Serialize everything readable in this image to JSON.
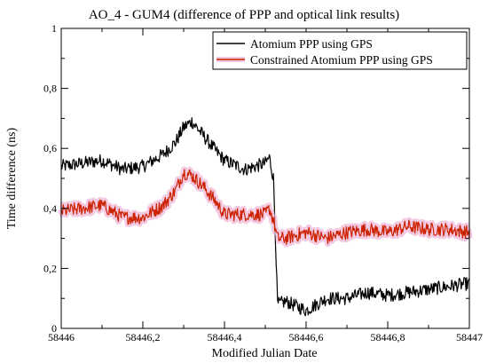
{
  "chart_data": {
    "type": "line",
    "title": "AO_4 - GUM4 (difference of PPP and optical link results)",
    "xlabel": "Modified Julian Date",
    "ylabel": "Time difference (ns)",
    "xlim": [
      58446,
      58447
    ],
    "ylim": [
      0,
      1
    ],
    "x_ticks": [
      58446,
      58446.2,
      58446.4,
      58446.6,
      58446.8,
      58447
    ],
    "x_tick_labels": [
      "58446",
      "58446,2",
      "58446,4",
      "58446,6",
      "58446,8",
      "58447"
    ],
    "y_ticks": [
      0,
      0.2,
      0.4,
      0.6,
      0.8,
      1
    ],
    "y_tick_labels": [
      "0",
      "0,2",
      "0,4",
      "0,6",
      "0,8",
      "1"
    ],
    "grid": false,
    "legend_position": "top-right",
    "series": [
      {
        "name": "Atomium PPP using GPS",
        "color": "#000000",
        "x": [
          58446,
          58446.05,
          58446.1,
          58446.15,
          58446.2,
          58446.25,
          58446.28,
          58446.3,
          58446.32,
          58446.35,
          58446.38,
          58446.4,
          58446.45,
          58446.5,
          58446.51,
          58446.52,
          58446.525,
          58446.53,
          58446.55,
          58446.6,
          58446.65,
          58446.7,
          58446.75,
          58446.8,
          58446.85,
          58446.9,
          58446.95,
          58447
        ],
        "y": [
          0.54,
          0.55,
          0.56,
          0.53,
          0.54,
          0.58,
          0.62,
          0.67,
          0.69,
          0.64,
          0.59,
          0.56,
          0.53,
          0.55,
          0.57,
          0.5,
          0.3,
          0.08,
          0.09,
          0.06,
          0.1,
          0.1,
          0.12,
          0.11,
          0.12,
          0.13,
          0.14,
          0.15
        ]
      },
      {
        "name": "Constrained Atomium PPP using GPS",
        "color": "#cc2200",
        "band_color": "#f0b8d8",
        "x": [
          58446,
          58446.05,
          58446.1,
          58446.15,
          58446.2,
          58446.25,
          58446.28,
          58446.3,
          58446.32,
          58446.35,
          58446.38,
          58446.4,
          58446.45,
          58446.5,
          58446.51,
          58446.52,
          58446.525,
          58446.53,
          58446.55,
          58446.6,
          58446.65,
          58446.7,
          58446.75,
          58446.8,
          58446.85,
          58446.9,
          58446.95,
          58447
        ],
        "y": [
          0.39,
          0.4,
          0.41,
          0.37,
          0.37,
          0.41,
          0.46,
          0.52,
          0.51,
          0.47,
          0.42,
          0.38,
          0.38,
          0.38,
          0.4,
          0.36,
          0.33,
          0.3,
          0.3,
          0.32,
          0.3,
          0.32,
          0.33,
          0.32,
          0.34,
          0.33,
          0.33,
          0.32
        ]
      }
    ]
  }
}
